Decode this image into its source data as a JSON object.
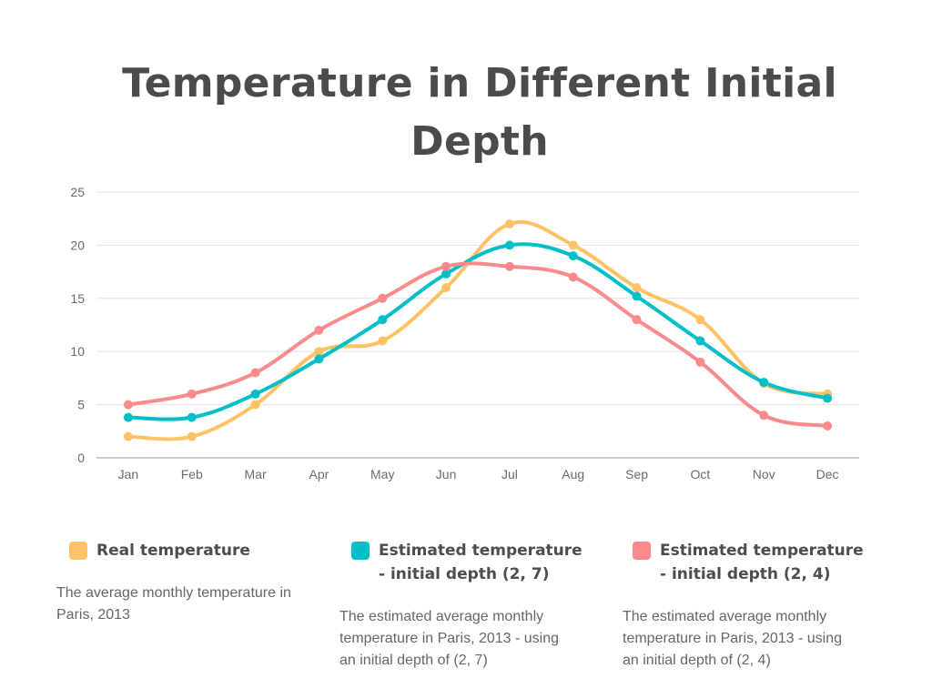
{
  "colors": {
    "real": "#FFC366",
    "est27": "#00BFC7",
    "est24": "#FA8A8C",
    "grid": "#e3e3e3",
    "axis": "#9a9a9a"
  },
  "chart_data": {
    "type": "line",
    "title": "Temperature in Different Initial Depth",
    "categories": [
      "Jan",
      "Feb",
      "Mar",
      "Apr",
      "May",
      "Jun",
      "Jul",
      "Aug",
      "Sep",
      "Oct",
      "Nov",
      "Dec"
    ],
    "ylim": [
      0,
      25
    ],
    "yticks": [
      0,
      5,
      10,
      15,
      20,
      25
    ],
    "grid": true,
    "legend_position": "bottom",
    "series": [
      {
        "key": "real",
        "name": "Real temperature",
        "values": [
          2,
          2,
          5,
          10,
          11,
          16,
          22,
          20,
          16,
          13,
          7,
          6
        ]
      },
      {
        "key": "est27",
        "name": "Estimated temperature - initial depth (2, 7)",
        "values": [
          3.8,
          3.8,
          6,
          9.3,
          13,
          17.3,
          20,
          19,
          15.2,
          11,
          7.1,
          5.6
        ]
      },
      {
        "key": "est24",
        "name": "Estimated temperature - initial depth (2, 4)",
        "values": [
          5,
          6,
          8,
          12,
          15,
          18,
          18,
          17,
          13,
          9,
          4,
          3
        ]
      }
    ]
  },
  "legend": [
    {
      "key": "real",
      "name": "Real temperature",
      "description": "The average monthly temperature in Paris, 2013"
    },
    {
      "key": "est27",
      "name": "Estimated temperature - initial depth (2, 7)",
      "description": "The estimated average monthly temperature in Paris, 2013 - using an initial depth of (2, 7)"
    },
    {
      "key": "est24",
      "name": "Estimated temperature - initial depth (2, 4)",
      "description": "The estimated average monthly temperature in Paris, 2013 - using an initial depth of (2, 4)"
    }
  ]
}
